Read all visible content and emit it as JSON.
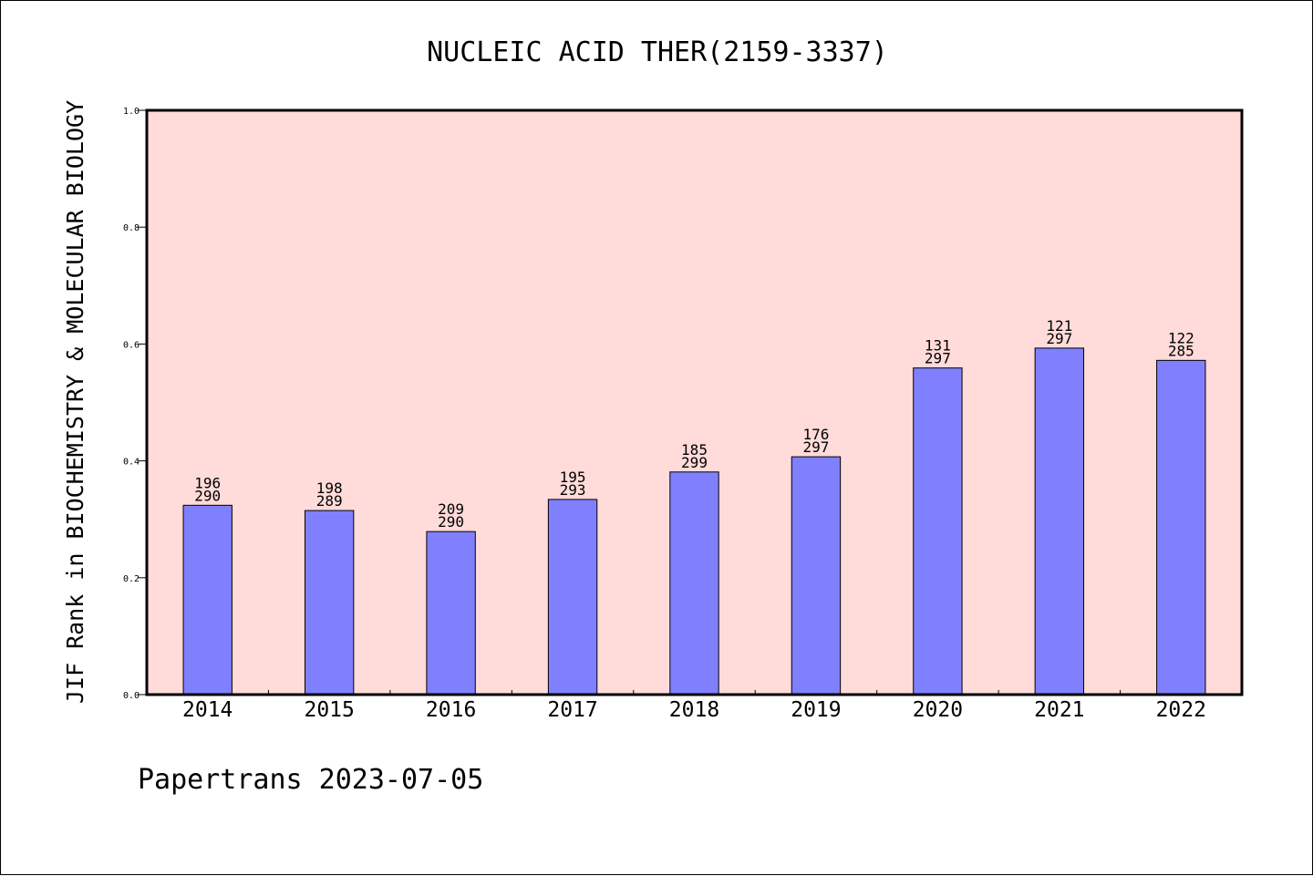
{
  "chart_data": {
    "type": "bar",
    "title": "NUCLEIC ACID THER(2159-3337)",
    "ylabel": "JIF Rank in BIOCHEMISTRY & MOLECULAR BIOLOGY",
    "xlabel": "",
    "ylim": [
      0,
      1.0
    ],
    "yticks": [
      "0.0",
      "0.2",
      "0.4",
      "0.6",
      "0.8",
      "1.0"
    ],
    "categories": [
      "2014",
      "2015",
      "2016",
      "2017",
      "2018",
      "2019",
      "2020",
      "2021",
      "2022"
    ],
    "values": [
      0.324,
      0.315,
      0.279,
      0.334,
      0.381,
      0.407,
      0.559,
      0.593,
      0.572
    ],
    "bar_labels": [
      {
        "rank": "196",
        "total": "290"
      },
      {
        "rank": "198",
        "total": "289"
      },
      {
        "rank": "209",
        "total": "290"
      },
      {
        "rank": "195",
        "total": "293"
      },
      {
        "rank": "185",
        "total": "299"
      },
      {
        "rank": "176",
        "total": "297"
      },
      {
        "rank": "131",
        "total": "297"
      },
      {
        "rank": "121",
        "total": "297"
      },
      {
        "rank": "122",
        "total": "285"
      }
    ],
    "grid": false,
    "legend": "none",
    "colors": {
      "bar": "#8080ff",
      "plot_background": "#ffdbd9",
      "axis": "#000000"
    }
  },
  "footer": "Papertrans 2023-07-05"
}
